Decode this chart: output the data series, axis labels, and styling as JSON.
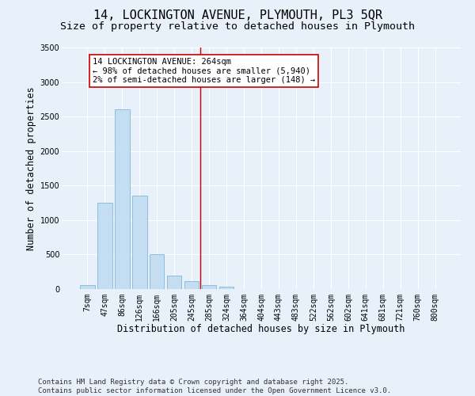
{
  "title_line1": "14, LOCKINGTON AVENUE, PLYMOUTH, PL3 5QR",
  "title_line2": "Size of property relative to detached houses in Plymouth",
  "xlabel": "Distribution of detached houses by size in Plymouth",
  "ylabel": "Number of detached properties",
  "categories": [
    "7sqm",
    "47sqm",
    "86sqm",
    "126sqm",
    "166sqm",
    "205sqm",
    "245sqm",
    "285sqm",
    "324sqm",
    "364sqm",
    "404sqm",
    "443sqm",
    "483sqm",
    "522sqm",
    "562sqm",
    "602sqm",
    "641sqm",
    "681sqm",
    "721sqm",
    "760sqm",
    "800sqm"
  ],
  "bar_heights": [
    55,
    1250,
    2600,
    1350,
    500,
    190,
    120,
    55,
    30,
    5,
    2,
    1,
    0,
    0,
    0,
    0,
    0,
    0,
    0,
    0,
    0
  ],
  "bar_color": "#c5ddf0",
  "bar_edge_color": "#6aafd6",
  "bg_color": "#e8f0fa",
  "grid_color": "#ffffff",
  "vline_x_index": 6.5,
  "vline_color": "#cc0000",
  "annotation_text": "14 LOCKINGTON AVENUE: 264sqm\n← 98% of detached houses are smaller (5,940)\n2% of semi-detached houses are larger (148) →",
  "annotation_box_color": "#ffffff",
  "annotation_box_edge": "#cc0000",
  "ylim": [
    0,
    3500
  ],
  "yticks": [
    0,
    500,
    1000,
    1500,
    2000,
    2500,
    3000,
    3500
  ],
  "footnote": "Contains HM Land Registry data © Crown copyright and database right 2025.\nContains public sector information licensed under the Open Government Licence v3.0.",
  "title_fontsize": 11,
  "subtitle_fontsize": 9.5,
  "axis_label_fontsize": 8.5,
  "tick_fontsize": 7,
  "annotation_fontsize": 7.5,
  "footnote_fontsize": 6.5
}
